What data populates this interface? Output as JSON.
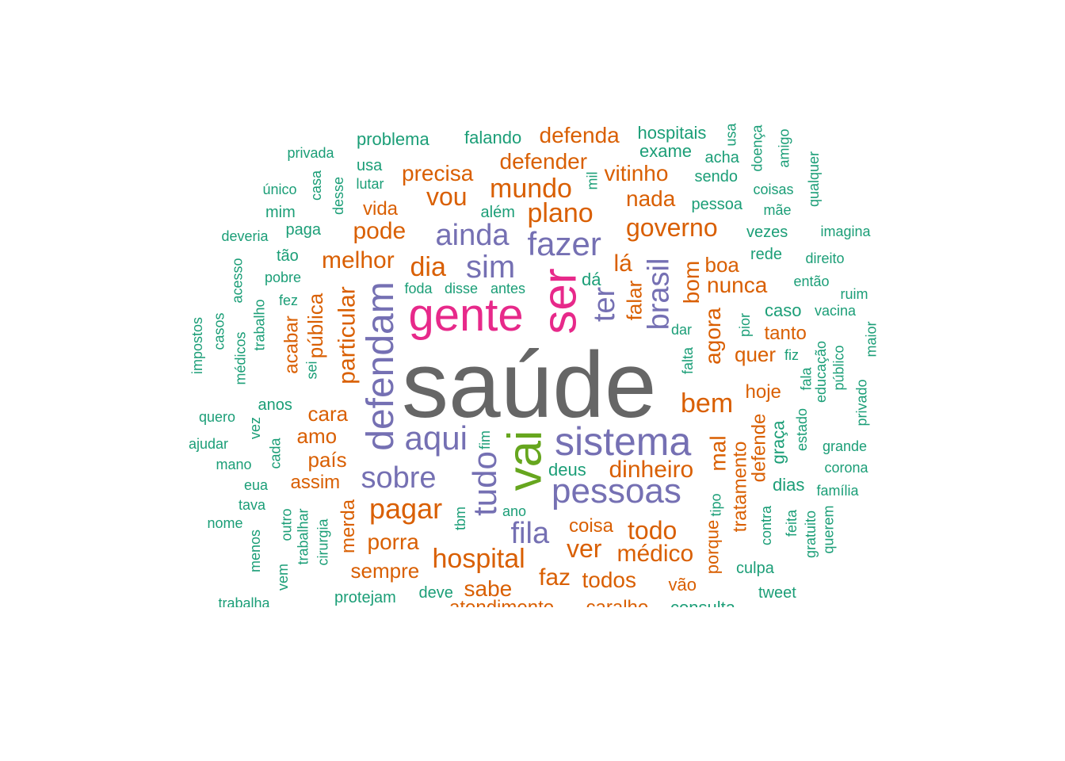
{
  "colors": {
    "gray": "#666666",
    "green": "#66a61e",
    "pink": "#e7298a",
    "purple": "#7570b3",
    "orange": "#d95f02",
    "teal": "#1b9e77"
  },
  "words": [
    {
      "text": "saúde",
      "c": "gray"
    },
    {
      "text": "vai",
      "c": "green"
    },
    {
      "text": "ser",
      "c": "pink"
    },
    {
      "text": "gente",
      "c": "pink"
    },
    {
      "text": "sistema",
      "c": "purple"
    },
    {
      "text": "defendam",
      "c": "purple"
    },
    {
      "text": "pessoas",
      "c": "purple"
    },
    {
      "text": "tudo",
      "c": "purple"
    },
    {
      "text": "fazer",
      "c": "purple"
    },
    {
      "text": "aqui",
      "c": "purple"
    },
    {
      "text": "sim",
      "c": "purple"
    },
    {
      "text": "ter",
      "c": "purple"
    },
    {
      "text": "brasil",
      "c": "purple"
    },
    {
      "text": "ainda",
      "c": "purple"
    },
    {
      "text": "sobre",
      "c": "purple"
    },
    {
      "text": "fila",
      "c": "purple"
    },
    {
      "text": "pagar",
      "c": "orange"
    },
    {
      "text": "hospital",
      "c": "orange"
    },
    {
      "text": "plano",
      "c": "orange"
    },
    {
      "text": "mundo",
      "c": "orange"
    },
    {
      "text": "dia",
      "c": "orange"
    },
    {
      "text": "vou",
      "c": "orange"
    },
    {
      "text": "governo",
      "c": "orange"
    },
    {
      "text": "bem",
      "c": "orange"
    },
    {
      "text": "todo",
      "c": "orange"
    },
    {
      "text": "ver",
      "c": "orange"
    },
    {
      "text": "dinheiro",
      "c": "orange"
    },
    {
      "text": "médico",
      "c": "orange"
    },
    {
      "text": "pode",
      "c": "orange"
    },
    {
      "text": "particular",
      "c": "orange"
    },
    {
      "text": "melhor",
      "c": "orange"
    },
    {
      "text": "precisa",
      "c": "orange"
    },
    {
      "text": "defender",
      "c": "orange"
    },
    {
      "text": "defenda",
      "c": "orange"
    },
    {
      "text": "vitinho",
      "c": "orange"
    },
    {
      "text": "nada",
      "c": "orange"
    },
    {
      "text": "lá",
      "c": "orange"
    },
    {
      "text": "bom",
      "c": "orange"
    },
    {
      "text": "boa",
      "c": "orange"
    },
    {
      "text": "nunca",
      "c": "orange"
    },
    {
      "text": "agora",
      "c": "orange"
    },
    {
      "text": "falar",
      "c": "orange"
    },
    {
      "text": "mal",
      "c": "orange"
    },
    {
      "text": "faz",
      "c": "orange"
    },
    {
      "text": "todos",
      "c": "orange"
    },
    {
      "text": "sabe",
      "c": "orange"
    },
    {
      "text": "porra",
      "c": "orange"
    },
    {
      "text": "sempre",
      "c": "orange"
    },
    {
      "text": "coisa",
      "c": "orange"
    },
    {
      "text": "cara",
      "c": "orange"
    },
    {
      "text": "amo",
      "c": "orange"
    },
    {
      "text": "país",
      "c": "orange"
    },
    {
      "text": "assim",
      "c": "orange"
    },
    {
      "text": "vida",
      "c": "orange"
    },
    {
      "text": "pública",
      "c": "orange"
    },
    {
      "text": "acabar",
      "c": "orange"
    },
    {
      "text": "merda",
      "c": "orange"
    },
    {
      "text": "hoje",
      "c": "orange"
    },
    {
      "text": "quer",
      "c": "orange"
    },
    {
      "text": "tanto",
      "c": "orange"
    },
    {
      "text": "tratamento",
      "c": "orange"
    },
    {
      "text": "defende",
      "c": "orange"
    },
    {
      "text": "porque",
      "c": "orange"
    },
    {
      "text": "vão",
      "c": "orange"
    },
    {
      "text": "caralho",
      "c": "orange"
    },
    {
      "text": "atendimento",
      "c": "orange"
    },
    {
      "text": "deus",
      "c": "teal"
    },
    {
      "text": "fim",
      "c": "teal"
    },
    {
      "text": "tbm",
      "c": "teal"
    },
    {
      "text": "ano",
      "c": "teal"
    },
    {
      "text": "deve",
      "c": "teal"
    },
    {
      "text": "protejam",
      "c": "teal"
    },
    {
      "text": "cirurgia",
      "c": "teal"
    },
    {
      "text": "trabalhar",
      "c": "teal"
    },
    {
      "text": "outro",
      "c": "teal"
    },
    {
      "text": "vem",
      "c": "teal"
    },
    {
      "text": "menos",
      "c": "teal"
    },
    {
      "text": "nome",
      "c": "teal"
    },
    {
      "text": "tava",
      "c": "teal"
    },
    {
      "text": "eua",
      "c": "teal"
    },
    {
      "text": "mano",
      "c": "teal"
    },
    {
      "text": "cada",
      "c": "teal"
    },
    {
      "text": "vez",
      "c": "teal"
    },
    {
      "text": "ajudar",
      "c": "teal"
    },
    {
      "text": "quero",
      "c": "teal"
    },
    {
      "text": "anos",
      "c": "teal"
    },
    {
      "text": "sei",
      "c": "teal"
    },
    {
      "text": "médicos",
      "c": "teal"
    },
    {
      "text": "casos",
      "c": "teal"
    },
    {
      "text": "impostos",
      "c": "teal"
    },
    {
      "text": "trabalho",
      "c": "teal"
    },
    {
      "text": "acesso",
      "c": "teal"
    },
    {
      "text": "fez",
      "c": "teal"
    },
    {
      "text": "pobre",
      "c": "teal"
    },
    {
      "text": "tão",
      "c": "teal"
    },
    {
      "text": "deveria",
      "c": "teal"
    },
    {
      "text": "paga",
      "c": "teal"
    },
    {
      "text": "mim",
      "c": "teal"
    },
    {
      "text": "único",
      "c": "teal"
    },
    {
      "text": "casa",
      "c": "teal"
    },
    {
      "text": "desse",
      "c": "teal"
    },
    {
      "text": "privada",
      "c": "teal"
    },
    {
      "text": "problema",
      "c": "teal"
    },
    {
      "text": "usa",
      "c": "teal"
    },
    {
      "text": "lutar",
      "c": "teal"
    },
    {
      "text": "falando",
      "c": "teal"
    },
    {
      "text": "além",
      "c": "teal"
    },
    {
      "text": "mil",
      "c": "teal"
    },
    {
      "text": "hospitais",
      "c": "teal"
    },
    {
      "text": "exame",
      "c": "teal"
    },
    {
      "text": "acha",
      "c": "teal"
    },
    {
      "text": "sendo",
      "c": "teal"
    },
    {
      "text": "pessoa",
      "c": "teal"
    },
    {
      "text": "usa",
      "c": "teal"
    },
    {
      "text": "doença",
      "c": "teal"
    },
    {
      "text": "amigo",
      "c": "teal"
    },
    {
      "text": "coisas",
      "c": "teal"
    },
    {
      "text": "mãe",
      "c": "teal"
    },
    {
      "text": "qualquer",
      "c": "teal"
    },
    {
      "text": "imagina",
      "c": "teal"
    },
    {
      "text": "vezes",
      "c": "teal"
    },
    {
      "text": "rede",
      "c": "teal"
    },
    {
      "text": "direito",
      "c": "teal"
    },
    {
      "text": "então",
      "c": "teal"
    },
    {
      "text": "ruim",
      "c": "teal"
    },
    {
      "text": "vacina",
      "c": "teal"
    },
    {
      "text": "maior",
      "c": "teal"
    },
    {
      "text": "caso",
      "c": "teal"
    },
    {
      "text": "dá",
      "c": "teal"
    },
    {
      "text": "foda",
      "c": "teal"
    },
    {
      "text": "disse",
      "c": "teal"
    },
    {
      "text": "antes",
      "c": "teal"
    },
    {
      "text": "dar",
      "c": "teal"
    },
    {
      "text": "falta",
      "c": "teal"
    },
    {
      "text": "pior",
      "c": "teal"
    },
    {
      "text": "fiz",
      "c": "teal"
    },
    {
      "text": "educação",
      "c": "teal"
    },
    {
      "text": "público",
      "c": "teal"
    },
    {
      "text": "privado",
      "c": "teal"
    },
    {
      "text": "fala",
      "c": "teal"
    },
    {
      "text": "estado",
      "c": "teal"
    },
    {
      "text": "graça",
      "c": "teal"
    },
    {
      "text": "grande",
      "c": "teal"
    },
    {
      "text": "corona",
      "c": "teal"
    },
    {
      "text": "dias",
      "c": "teal"
    },
    {
      "text": "família",
      "c": "teal"
    },
    {
      "text": "tipo",
      "c": "teal"
    },
    {
      "text": "contra",
      "c": "teal"
    },
    {
      "text": "feita",
      "c": "teal"
    },
    {
      "text": "gratuito",
      "c": "teal"
    },
    {
      "text": "querem",
      "c": "teal"
    },
    {
      "text": "culpa",
      "c": "teal"
    },
    {
      "text": "tweet",
      "c": "teal"
    },
    {
      "text": "consulta",
      "c": "teal"
    },
    {
      "text": "trabalha",
      "c": "teal"
    }
  ]
}
